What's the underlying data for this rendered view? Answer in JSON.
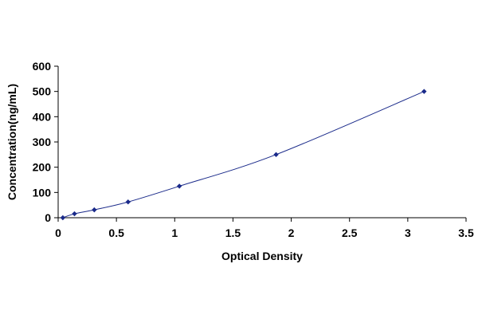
{
  "chart_data": {
    "type": "scatter",
    "xlabel": "Optical Density",
    "ylabel": "Concentration(ng/mL)",
    "xlim": [
      0,
      3.5
    ],
    "ylim": [
      0,
      600
    ],
    "x_ticks": [
      0,
      0.5,
      1,
      1.5,
      2,
      2.5,
      3,
      3.5
    ],
    "x_tick_labels": [
      "0",
      "0.5",
      "1",
      "1.5",
      "2",
      "2.5",
      "3",
      "3.5"
    ],
    "y_ticks": [
      0,
      100,
      200,
      300,
      400,
      500,
      600
    ],
    "y_tick_labels": [
      "0",
      "100",
      "200",
      "300",
      "400",
      "500",
      "600"
    ],
    "grid": false,
    "trendline": true,
    "series": [
      {
        "x": [
          0.04,
          0.14,
          0.31,
          0.6,
          1.04,
          1.87,
          3.14
        ],
        "y": [
          0,
          15.6,
          31.2,
          62.5,
          125,
          250,
          500
        ],
        "color": "#1a2a8a"
      }
    ]
  }
}
